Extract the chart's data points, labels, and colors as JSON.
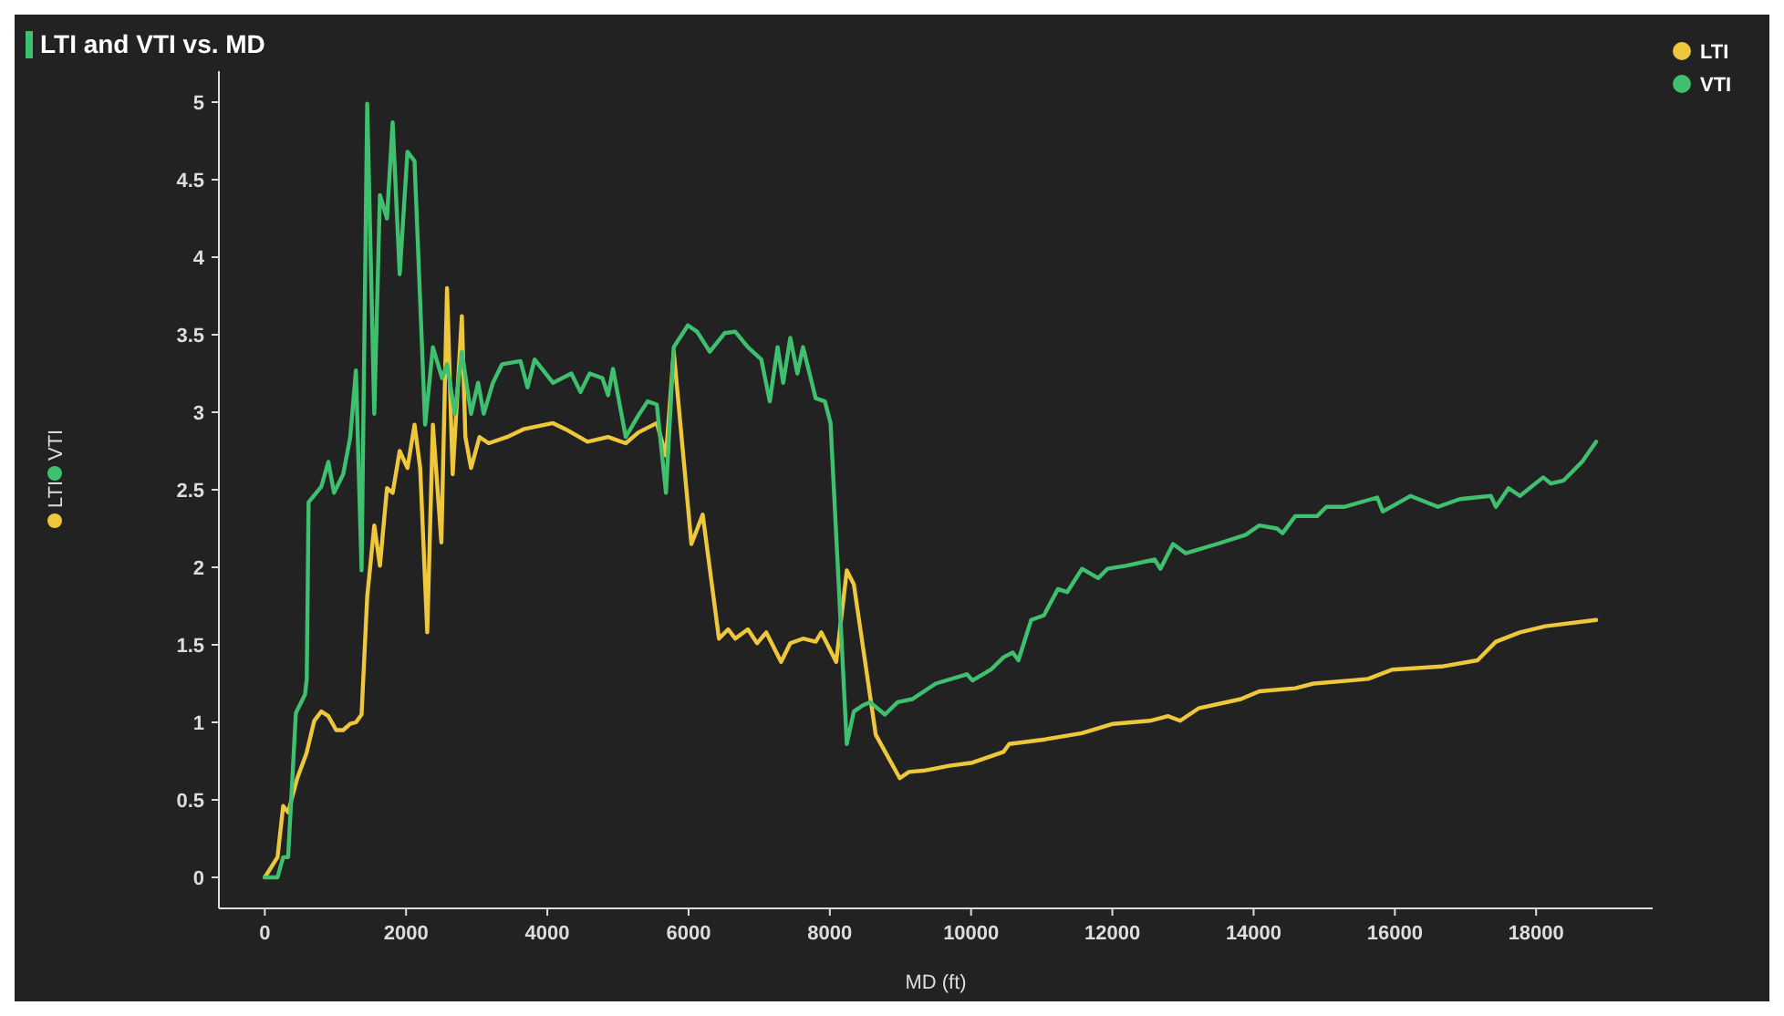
{
  "chart_data": {
    "type": "line",
    "title": "LTI and VTI vs. MD",
    "xlabel": "MD (ft)",
    "xlim": [
      -650,
      19650
    ],
    "ylim": [
      -0.2,
      5.2
    ],
    "xticks": [
      0,
      2000,
      4000,
      6000,
      8000,
      10000,
      12000,
      14000,
      16000,
      18000
    ],
    "yticks": [
      0,
      0.5,
      1,
      1.5,
      2,
      2.5,
      3,
      3.5,
      4,
      4.5,
      5
    ],
    "grid": false,
    "legend": "top right",
    "marker": "none",
    "line_style": "solid",
    "series": [
      {
        "name": "LTI",
        "color": "#eec73c",
        "x": [
          0,
          180,
          260,
          330,
          460,
          590,
          700,
          800,
          900,
          1010,
          1110,
          1210,
          1290,
          1370,
          1450,
          1550,
          1630,
          1730,
          1810,
          1910,
          2020,
          2120,
          2200,
          2300,
          2380,
          2500,
          2580,
          2660,
          2790,
          2840,
          2920,
          3040,
          3170,
          3430,
          3660,
          4080,
          4260,
          4570,
          4860,
          5110,
          5290,
          5550,
          5680,
          5790,
          6040,
          6200,
          6430,
          6560,
          6660,
          6840,
          6970,
          7100,
          7310,
          7440,
          7620,
          7800,
          7880,
          8090,
          8240,
          8340,
          8650,
          8990,
          9120,
          9350,
          9690,
          10020,
          10460,
          10540,
          11050,
          11570,
          12010,
          12530,
          12790,
          12960,
          13220,
          13820,
          14080,
          14590,
          14850,
          15370,
          15620,
          15960,
          16660,
          17170,
          17430,
          17770,
          18130,
          18850
        ],
        "values": [
          0,
          0.13,
          0.46,
          0.42,
          0.64,
          0.8,
          1.01,
          1.07,
          1.04,
          0.95,
          0.95,
          0.99,
          1.0,
          1.05,
          1.81,
          2.27,
          2.01,
          2.51,
          2.48,
          2.75,
          2.64,
          2.92,
          2.64,
          1.58,
          2.92,
          2.16,
          3.8,
          2.6,
          3.62,
          2.84,
          2.64,
          2.84,
          2.8,
          2.84,
          2.89,
          2.93,
          2.89,
          2.81,
          2.84,
          2.8,
          2.87,
          2.93,
          2.72,
          3.39,
          2.15,
          2.34,
          1.54,
          1.6,
          1.54,
          1.6,
          1.51,
          1.58,
          1.39,
          1.51,
          1.54,
          1.52,
          1.58,
          1.39,
          1.98,
          1.89,
          0.92,
          0.64,
          0.68,
          0.69,
          0.72,
          0.74,
          0.81,
          0.86,
          0.89,
          0.93,
          0.99,
          1.01,
          1.04,
          1.01,
          1.09,
          1.15,
          1.2,
          1.22,
          1.25,
          1.27,
          1.28,
          1.34,
          1.36,
          1.4,
          1.52,
          1.58,
          1.62,
          1.66
        ]
      },
      {
        "name": "VTI",
        "color": "#3fc06f",
        "x": [
          0,
          180,
          260,
          330,
          440,
          570,
          594,
          620,
          800,
          900,
          980,
          1110,
          1210,
          1290,
          1370,
          1450,
          1550,
          1630,
          1730,
          1810,
          1910,
          2020,
          2120,
          2270,
          2380,
          2510,
          2580,
          2690,
          2790,
          2920,
          3020,
          3100,
          3230,
          3360,
          3620,
          3720,
          3820,
          4080,
          4340,
          4470,
          4600,
          4780,
          4860,
          4930,
          5110,
          5290,
          5420,
          5550,
          5680,
          5790,
          5990,
          6120,
          6300,
          6510,
          6660,
          6840,
          7030,
          7150,
          7260,
          7340,
          7440,
          7540,
          7620,
          7800,
          7930,
          8010,
          8240,
          8340,
          8470,
          8570,
          8780,
          8960,
          9170,
          9500,
          9940,
          10020,
          10280,
          10460,
          10590,
          10670,
          10850,
          11030,
          11230,
          11360,
          11570,
          11800,
          11930,
          12190,
          12600,
          12680,
          12860,
          13040,
          13480,
          13890,
          14080,
          14330,
          14410,
          14590,
          14900,
          15030,
          15290,
          15750,
          15830,
          16220,
          16610,
          16920,
          17360,
          17430,
          17610,
          17770,
          18100,
          18210,
          18390,
          18650,
          18850
        ],
        "values": [
          0,
          0,
          0.13,
          0.13,
          1.06,
          1.18,
          1.28,
          2.42,
          2.52,
          2.68,
          2.48,
          2.6,
          2.84,
          3.27,
          1.98,
          4.99,
          2.99,
          4.4,
          4.25,
          4.87,
          3.89,
          4.68,
          4.62,
          2.92,
          3.42,
          3.22,
          3.31,
          2.99,
          3.39,
          2.99,
          3.19,
          2.99,
          3.19,
          3.31,
          3.33,
          3.16,
          3.34,
          3.19,
          3.25,
          3.13,
          3.25,
          3.22,
          3.11,
          3.28,
          2.84,
          2.98,
          3.07,
          3.05,
          2.48,
          3.42,
          3.56,
          3.52,
          3.39,
          3.51,
          3.52,
          3.42,
          3.34,
          3.07,
          3.42,
          3.19,
          3.48,
          3.25,
          3.42,
          3.09,
          3.07,
          2.93,
          0.86,
          1.07,
          1.11,
          1.13,
          1.05,
          1.13,
          1.15,
          1.25,
          1.31,
          1.27,
          1.34,
          1.42,
          1.45,
          1.4,
          1.66,
          1.69,
          1.86,
          1.84,
          1.99,
          1.93,
          1.99,
          2.01,
          2.05,
          1.99,
          2.15,
          2.09,
          2.15,
          2.21,
          2.27,
          2.25,
          2.22,
          2.33,
          2.33,
          2.39,
          2.39,
          2.45,
          2.36,
          2.46,
          2.39,
          2.44,
          2.46,
          2.39,
          2.51,
          2.46,
          2.58,
          2.54,
          2.56,
          2.68,
          2.81
        ]
      }
    ]
  }
}
